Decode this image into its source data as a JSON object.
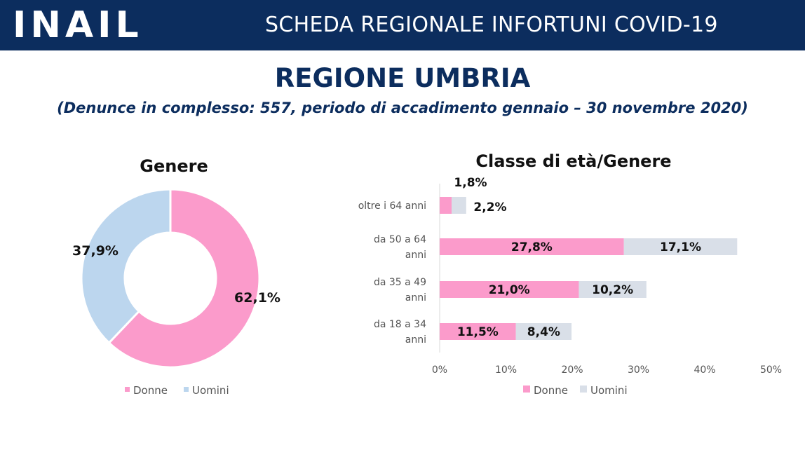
{
  "header": {
    "logo_text": "INAIL",
    "title": "SCHEDA REGIONALE INFORTUNI COVID-19"
  },
  "page": {
    "region_title": "REGIONE UMBRIA",
    "subtitle": "(Denunce in complesso: 557, periodo di accadimento gennaio – 30 novembre 2020)"
  },
  "colors": {
    "header_bg": "#0c2d5e",
    "donne": "#fb9bcb",
    "uomini_pie": "#bcd6ee",
    "uomini_bar": "#d9dfe8"
  },
  "chart_data": [
    {
      "type": "pie",
      "title": "Genere",
      "categories": [
        "Donne",
        "Uomini"
      ],
      "values": [
        62.1,
        37.9
      ],
      "value_labels": [
        "62,1%",
        "37,9%"
      ],
      "legend": [
        "Donne",
        "Uomini"
      ],
      "legend_position": "bottom",
      "donut": true
    },
    {
      "type": "bar",
      "orientation": "horizontal",
      "stacked": true,
      "title": "Classe di età/Genere",
      "categories": [
        [
          "oltre i 64 anni"
        ],
        [
          "da 50 a 64",
          "anni"
        ],
        [
          "da 35 a 49",
          "anni"
        ],
        [
          "da 18 a 34",
          "anni"
        ]
      ],
      "series": [
        {
          "name": "Donne",
          "values": [
            1.8,
            27.8,
            21.0,
            11.5
          ],
          "labels": [
            "1,8%",
            "27,8%",
            "21,0%",
            "11,5%"
          ]
        },
        {
          "name": "Uomini",
          "values": [
            2.2,
            17.1,
            10.2,
            8.4
          ],
          "labels": [
            "2,2%",
            "17,1%",
            "10,2%",
            "8,4%"
          ]
        }
      ],
      "xlim": [
        0,
        50
      ],
      "xticks": [
        "0%",
        "10%",
        "20%",
        "30%",
        "40%",
        "50%"
      ],
      "legend": [
        "Donne",
        "Uomini"
      ],
      "legend_position": "bottom",
      "grid": false
    }
  ]
}
